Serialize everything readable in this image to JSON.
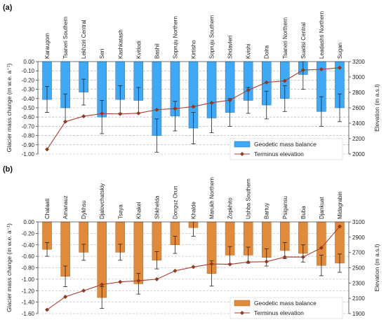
{
  "colors": {
    "panel_a_bar": "#3fa9f5",
    "panel_a_bar_edge": "#1f6fb4",
    "panel_b_bar": "#e08a3c",
    "panel_b_bar_edge": "#b8621d",
    "line": "#b03a2e",
    "marker": "#8e3a1e",
    "grid": "#aaaaaa"
  },
  "chart_data": [
    {
      "type": "bar",
      "panel_label": "(a)",
      "categories": [
        "Karaugom",
        "Tsaneri Southern",
        "Lekhziri Central",
        "Seri",
        "Kashkatash",
        "Kvitlodi",
        "Bashil",
        "Sopruju Northern",
        "Kirtisho",
        "Sopruju Southern",
        "Shdavleri",
        "Kvishi",
        "Dolra",
        "Tsaneri Northern",
        "Suatisi Central",
        "Leadashti Northern",
        "Sugan"
      ],
      "series": [
        {
          "name": "Geodetic mass balance",
          "axis": "left",
          "values": [
            -0.41,
            -0.5,
            -0.33,
            -0.6,
            -0.41,
            -0.42,
            -0.8,
            -0.59,
            -0.72,
            -0.61,
            -0.55,
            -0.42,
            -0.47,
            -0.4,
            -0.14,
            -0.54,
            -0.5
          ],
          "error": [
            0.14,
            0.15,
            0.14,
            0.18,
            0.15,
            0.14,
            0.18,
            0.16,
            0.17,
            0.16,
            0.15,
            0.14,
            0.15,
            0.14,
            0.16,
            0.16,
            0.15
          ]
        },
        {
          "name": "Terminus elevation",
          "axis": "right",
          "type": "line",
          "values": [
            2060,
            2420,
            2490,
            2525,
            2520,
            2530,
            2575,
            2590,
            2615,
            2665,
            2700,
            2830,
            2930,
            2950,
            3090,
            3100,
            3120
          ]
        }
      ],
      "ylabel": "Glacier mass change (m w.e. a⁻¹)",
      "y2label": "Elevation (m a.s.l)",
      "ylim": [
        -1.0,
        0.0
      ],
      "yticks": [
        "0.00",
        "-0.10",
        "-0.20",
        "-0.30",
        "-0.40",
        "-0.50",
        "-0.60",
        "-0.70",
        "-0.80",
        "-0.90",
        "-1.00"
      ],
      "y2lim": [
        2000,
        3200
      ],
      "y2ticks": [
        "2000",
        "2200",
        "2400",
        "2600",
        "2800",
        "3000",
        "3200"
      ],
      "grid": true,
      "legend_position": "bottom-right"
    },
    {
      "type": "bar",
      "panel_label": "(b)",
      "categories": [
        "Chalaati",
        "Amanauz",
        "Dykhsu",
        "Djalovchatskiy",
        "Tseya",
        "Khakel",
        "Shkhelda",
        "Donguz Orun",
        "Khalde",
        "Marukh Northern",
        "Zopkhito",
        "Ushba Southern",
        "Bartuy",
        "Psigansu",
        "Buba",
        "Djankuat",
        "Midagrabin"
      ],
      "series": [
        {
          "name": "Geodetic mass balance",
          "axis": "left",
          "values": [
            -0.48,
            -0.95,
            -0.53,
            -1.32,
            -0.53,
            -1.08,
            -0.67,
            -0.4,
            -0.1,
            -0.9,
            -0.58,
            -0.58,
            -0.62,
            -0.5,
            -0.55,
            -0.76,
            -0.72
          ],
          "error": [
            0.12,
            0.18,
            0.14,
            0.19,
            0.14,
            0.18,
            0.15,
            0.15,
            0.15,
            0.22,
            0.15,
            0.14,
            0.15,
            0.14,
            0.15,
            0.18,
            0.16
          ]
        },
        {
          "name": "Terminus elevation",
          "axis": "right",
          "type": "line",
          "values": [
            1950,
            2120,
            2200,
            2280,
            2315,
            2330,
            2350,
            2460,
            2510,
            2550,
            2545,
            2575,
            2580,
            2640,
            2640,
            2760,
            3040
          ]
        }
      ],
      "ylabel": "Glacier mass change (m w.e. a⁻¹)",
      "y2label": "Elevation (m a.s.l)",
      "ylim": [
        -1.6,
        0.0
      ],
      "yticks": [
        "0.00",
        "-0.20",
        "-0.40",
        "-0.60",
        "-0.80",
        "-1.00",
        "-1.20",
        "-1.40",
        "-1.60"
      ],
      "y2lim": [
        1900,
        3100
      ],
      "y2ticks": [
        "1900",
        "2100",
        "2300",
        "2500",
        "2700",
        "2900",
        "3100"
      ],
      "grid": true,
      "legend_position": "bottom-right"
    }
  ]
}
